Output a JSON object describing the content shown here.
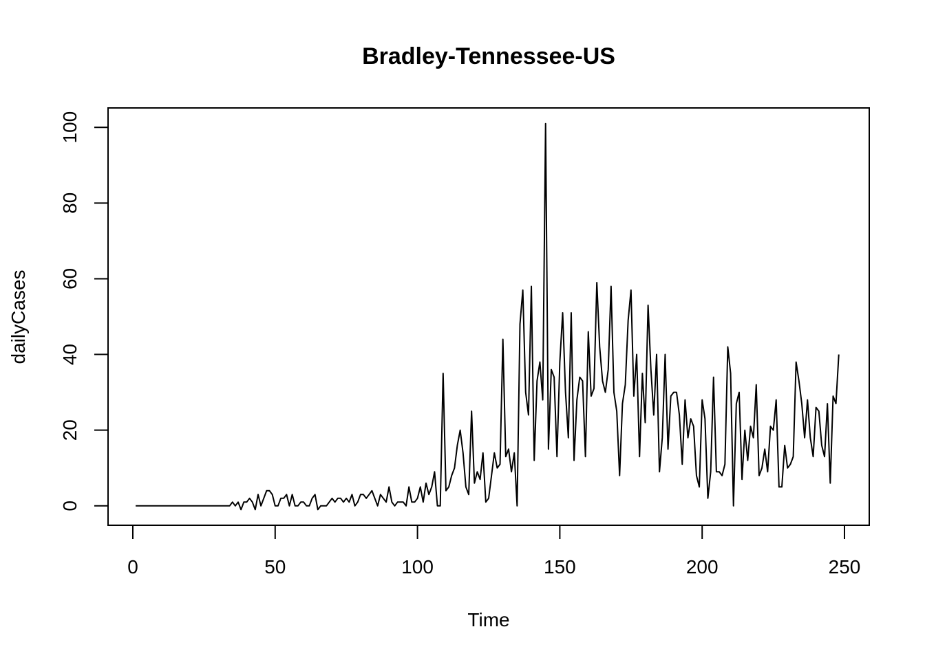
{
  "chart_data": {
    "type": "line",
    "title": "Bradley-Tennessee-US",
    "xlabel": "Time",
    "ylabel": "dailyCases",
    "xlim": [
      -8.7,
      258.7
    ],
    "ylim": [
      -5.12,
      105.12
    ],
    "x_ticks": [
      0,
      50,
      100,
      150,
      200,
      250
    ],
    "y_ticks": [
      0,
      20,
      40,
      60,
      80,
      100
    ],
    "grid": false,
    "line_color": "#000000",
    "x_start": 1,
    "series": [
      {
        "values": [
          0,
          0,
          0,
          0,
          0,
          0,
          0,
          0,
          0,
          0,
          0,
          0,
          0,
          0,
          0,
          0,
          0,
          0,
          0,
          0,
          0,
          0,
          0,
          0,
          0,
          0,
          0,
          0,
          0,
          0,
          0,
          0,
          0,
          0,
          1,
          0,
          1,
          -1,
          1,
          1,
          2,
          1,
          -1,
          3,
          0,
          2,
          4,
          4,
          3,
          0,
          0,
          2,
          2,
          3,
          0,
          3,
          0,
          0,
          1,
          1,
          0,
          0,
          2,
          3,
          -1,
          0,
          0,
          0,
          1,
          2,
          1,
          2,
          2,
          1,
          2,
          1,
          3,
          0,
          1,
          3,
          3,
          2,
          3,
          4,
          2,
          0,
          3,
          2,
          1,
          5,
          1,
          0,
          1,
          1,
          1,
          0,
          5,
          1,
          1,
          2,
          5,
          1,
          6,
          3,
          5,
          9,
          0,
          0,
          35,
          4,
          5,
          8,
          10,
          16,
          20,
          14,
          5,
          3,
          25,
          6,
          9,
          7,
          14,
          1,
          2,
          8,
          14,
          10,
          11,
          44,
          13,
          15,
          9,
          14,
          0,
          48,
          57,
          30,
          24,
          58,
          12,
          33,
          38,
          28,
          101,
          15,
          36,
          34,
          13,
          38,
          51,
          30,
          18,
          51,
          12,
          28,
          34,
          33,
          13,
          46,
          29,
          31,
          59,
          42,
          33,
          30,
          36,
          58,
          30,
          25,
          8,
          27,
          32,
          49,
          57,
          29,
          40,
          13,
          35,
          22,
          53,
          36,
          24,
          40,
          9,
          18,
          40,
          15,
          29,
          30,
          30,
          24,
          11,
          28,
          18,
          23,
          21,
          8,
          5,
          28,
          23,
          2,
          9,
          34,
          9,
          9,
          8,
          11,
          42,
          35,
          0,
          27,
          30,
          7,
          20,
          12,
          21,
          18,
          32,
          8,
          10,
          15,
          9,
          21,
          20,
          28,
          5,
          5,
          16,
          10,
          11,
          13,
          38,
          33,
          27,
          18,
          28,
          18,
          13,
          26,
          25,
          16,
          13,
          27,
          6,
          29,
          27,
          40
        ]
      }
    ]
  }
}
